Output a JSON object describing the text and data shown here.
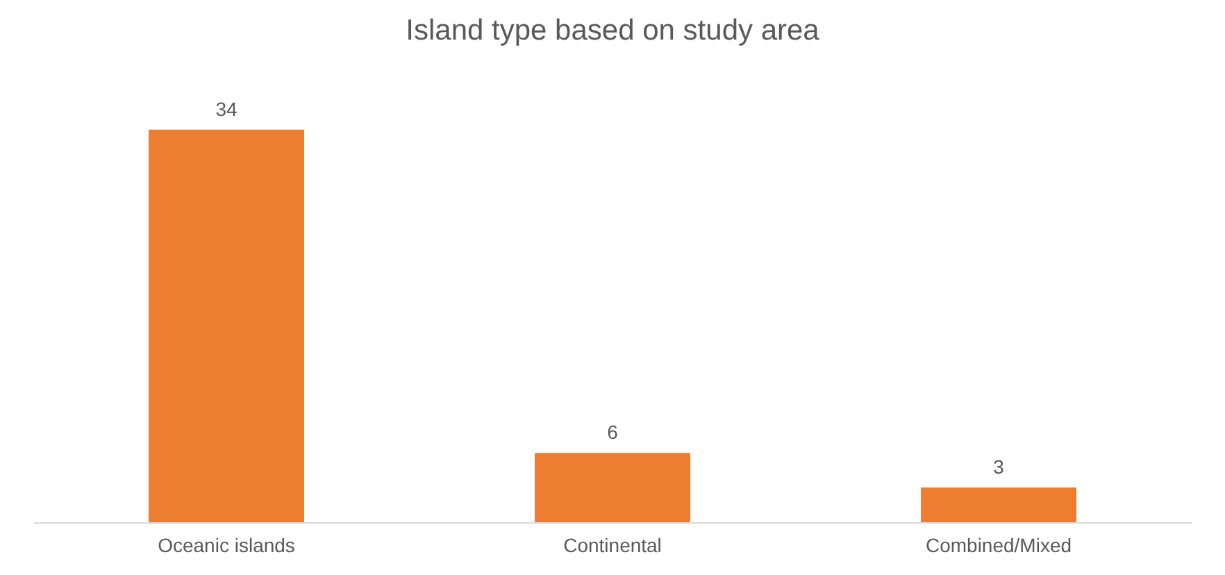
{
  "chart_data": {
    "type": "bar",
    "title": "Island type based on study area",
    "categories": [
      "Oceanic islands",
      "Continental",
      "Combined/Mixed"
    ],
    "values": [
      34,
      6,
      3
    ],
    "color": "#ed7d31",
    "data_labels": true
  }
}
